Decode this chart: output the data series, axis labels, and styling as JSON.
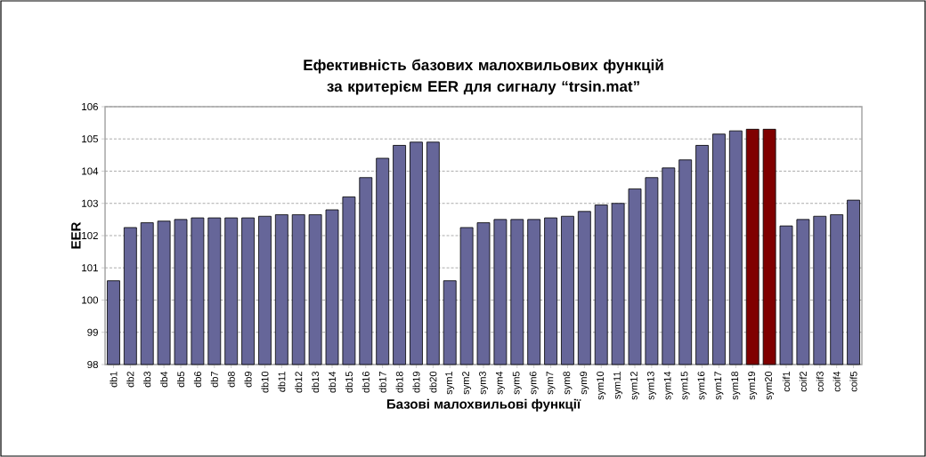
{
  "chart_data": {
    "type": "bar",
    "title": "Ефективність базових малохвильових функцій за критерієм EER для сигналу “trsin.mat”",
    "xlabel": "Базові малохвильові функції",
    "ylabel": "EER",
    "categories": [
      "db1",
      "db2",
      "db3",
      "db4",
      "db5",
      "db6",
      "db7",
      "db8",
      "db9",
      "db10",
      "db11",
      "db12",
      "db13",
      "db14",
      "db15",
      "db16",
      "db17",
      "db18",
      "db19",
      "db20",
      "sym1",
      "sym2",
      "sym3",
      "sym4",
      "sym5",
      "sym6",
      "sym7",
      "sym8",
      "sym9",
      "sym10",
      "sym11",
      "sym12",
      "sym13",
      "sym14",
      "sym15",
      "sym16",
      "sym17",
      "sym18",
      "sym19",
      "sym20",
      "coif1",
      "coif2",
      "coif3",
      "coif4",
      "coif5"
    ],
    "values": [
      100.6,
      102.25,
      102.4,
      102.45,
      102.5,
      102.55,
      102.55,
      102.55,
      102.55,
      102.6,
      102.65,
      102.65,
      102.65,
      102.8,
      103.2,
      103.8,
      104.4,
      104.8,
      104.9,
      104.9,
      100.6,
      102.25,
      102.4,
      102.5,
      102.5,
      102.5,
      102.55,
      102.6,
      102.75,
      102.95,
      103.0,
      103.45,
      103.8,
      104.1,
      104.35,
      104.8,
      105.15,
      105.25,
      105.3,
      105.3,
      102.3,
      102.5,
      102.6,
      102.65,
      103.1
    ],
    "colors": [
      "#666699",
      "#666699",
      "#666699",
      "#666699",
      "#666699",
      "#666699",
      "#666699",
      "#666699",
      "#666699",
      "#666699",
      "#666699",
      "#666699",
      "#666699",
      "#666699",
      "#666699",
      "#666699",
      "#666699",
      "#666699",
      "#666699",
      "#666699",
      "#666699",
      "#666699",
      "#666699",
      "#666699",
      "#666699",
      "#666699",
      "#666699",
      "#666699",
      "#666699",
      "#666699",
      "#666699",
      "#666699",
      "#666699",
      "#666699",
      "#666699",
      "#666699",
      "#666699",
      "#666699",
      "#800000",
      "#800000",
      "#666699",
      "#666699",
      "#666699",
      "#666699",
      "#666699"
    ],
    "ylim": [
      98,
      106
    ],
    "yticks": [
      98,
      99,
      100,
      101,
      102,
      103,
      104,
      105,
      106
    ],
    "grid": "y"
  }
}
